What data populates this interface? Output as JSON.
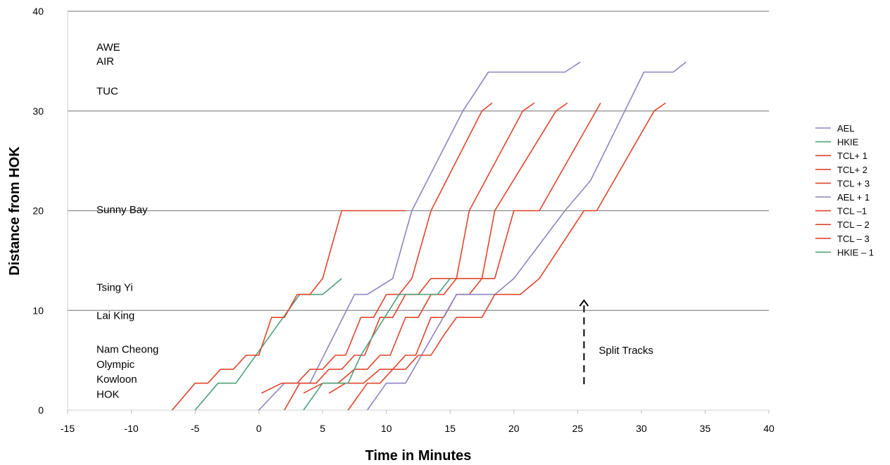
{
  "chart_data": {
    "type": "line",
    "xlabel": "Time in Minutes",
    "ylabel": "Distance from HOK",
    "xlim": [
      -15,
      40
    ],
    "ylim": [
      0,
      40
    ],
    "xticks": [
      -15,
      -10,
      -5,
      0,
      5,
      10,
      15,
      20,
      25,
      30,
      35,
      40
    ],
    "yticks": [
      0,
      10,
      20,
      30,
      40
    ],
    "grid": "horizontal",
    "legend_position": "right",
    "station_labels": [
      {
        "name": "AWE",
        "y": 36.4
      },
      {
        "name": "AIR",
        "y": 35.0
      },
      {
        "name": "TUC",
        "y": 32.0
      },
      {
        "name": "Sunny Bay",
        "y": 20.1
      },
      {
        "name": "Tsing Yi",
        "y": 12.3
      },
      {
        "name": "Lai King",
        "y": 9.5
      },
      {
        "name": "Nam Cheong",
        "y": 6.1
      },
      {
        "name": "Olympic",
        "y": 4.6
      },
      {
        "name": "Kowloon",
        "y": 3.1
      },
      {
        "name": "HOK",
        "y": 1.6
      }
    ],
    "annotation": {
      "text": "Split Tracks",
      "x": 25.5,
      "y_from": 2.6,
      "y_to": 11.0
    },
    "series": [
      {
        "name": "AEL",
        "color": "#8a86c2",
        "x": [
          0,
          2,
          4,
          7.5,
          8.5,
          10.5,
          12,
          16,
          18,
          22,
          24,
          25.2
        ],
        "y": [
          0,
          2.7,
          2.7,
          11.6,
          11.6,
          13.2,
          20,
          30,
          33.9,
          33.9,
          33.9,
          34.9
        ]
      },
      {
        "name": "HKIE",
        "color": "#4fa07a",
        "x": [
          -5,
          -3.2,
          -1.8,
          3.2,
          5,
          6.5
        ],
        "y": [
          0,
          2.7,
          2.7,
          11.6,
          11.6,
          13.2
        ]
      },
      {
        "name": "TCL+ 1",
        "color": "#e0452c",
        "x": [
          0.2,
          1.8,
          3,
          4,
          5,
          6,
          6.8,
          8,
          9,
          10,
          11,
          12,
          13.5,
          17.5,
          18.3
        ],
        "y": [
          1.7,
          2.7,
          2.7,
          4.1,
          4.1,
          5.5,
          5.5,
          9.3,
          9.3,
          11.6,
          11.6,
          13.2,
          20,
          30,
          30.8
        ]
      },
      {
        "name": "TCL+ 2",
        "color": "#e0452c",
        "x": [
          3.5,
          5,
          6.2,
          7.5,
          8.5,
          9.5,
          10.3,
          11.5,
          12.5,
          13.5,
          14.5,
          15.5,
          16.5,
          20.7,
          21.6
        ],
        "y": [
          1.7,
          2.7,
          2.7,
          4.1,
          4.1,
          5.5,
          5.5,
          9.3,
          9.3,
          11.6,
          11.6,
          13.2,
          20,
          30,
          30.8
        ]
      },
      {
        "name": "TCL + 3",
        "color": "#e0452c",
        "x": [
          5.5,
          6.8,
          8.2,
          9.5,
          10.5,
          11.5,
          12.3,
          13.5,
          14.5,
          15.5,
          16.5,
          17.5,
          18.5,
          23.3,
          24.2
        ],
        "y": [
          1.7,
          2.7,
          2.7,
          4.1,
          4.1,
          5.5,
          5.5,
          9.3,
          9.3,
          11.6,
          11.6,
          13.2,
          20,
          30,
          30.8
        ]
      },
      {
        "name": "AEL + 1",
        "color": "#8a86c2",
        "x": [
          8.5,
          10,
          11.5,
          15.5,
          16.5,
          18.5,
          20,
          24,
          26,
          30.2,
          32.5,
          33.5
        ],
        "y": [
          0,
          2.7,
          2.7,
          11.6,
          11.6,
          11.6,
          13.2,
          20,
          23,
          33.9,
          33.9,
          34.9
        ]
      },
      {
        "name": "TCL –1",
        "color": "#e0452c",
        "x": [
          -6.8,
          -5,
          -4,
          -3,
          -2,
          -1,
          0,
          1,
          2,
          3,
          4,
          5,
          6.5,
          10.5,
          11.5
        ],
        "y": [
          0,
          2.7,
          2.7,
          4.1,
          4.1,
          5.5,
          5.5,
          9.3,
          9.3,
          11.6,
          11.6,
          13.2,
          20,
          20,
          20
        ]
      },
      {
        "name": "TCL – 2",
        "color": "#e0452c",
        "x": [
          2,
          3.2,
          4.5,
          5.5,
          6.5,
          7.5,
          8.3,
          9.5,
          10.5,
          11.5,
          12.5,
          13.5,
          14.5,
          15.5,
          16.5,
          17.5,
          18.5,
          20,
          21,
          22,
          26.8
        ],
        "y": [
          0,
          2.7,
          2.7,
          4.1,
          4.1,
          5.5,
          5.5,
          9.3,
          9.3,
          11.6,
          11.6,
          13.2,
          13.2,
          13.2,
          13.2,
          13.2,
          13.2,
          20,
          20,
          20,
          30.8
        ]
      },
      {
        "name": "TCL – 3",
        "color": "#e0452c",
        "x": [
          7,
          8.5,
          9.5,
          10.5,
          11.5,
          12.5,
          13.5,
          14.5,
          15.5,
          16.5,
          17.5,
          18.5,
          19.5,
          20.5,
          22,
          25.5,
          26.5,
          31,
          31.9
        ],
        "y": [
          0,
          2.7,
          2.7,
          4.1,
          4.1,
          5.5,
          5.5,
          7.5,
          9.3,
          9.3,
          9.3,
          11.6,
          11.6,
          11.6,
          13.2,
          20,
          20,
          30,
          30.8
        ]
      },
      {
        "name": "HKIE – 1",
        "color": "#4fa07a",
        "x": [
          3.5,
          5,
          7,
          8,
          11,
          12.5,
          14,
          15
        ],
        "y": [
          0,
          2.7,
          2.7,
          5.5,
          11.6,
          11.6,
          11.6,
          13.2
        ]
      }
    ]
  }
}
